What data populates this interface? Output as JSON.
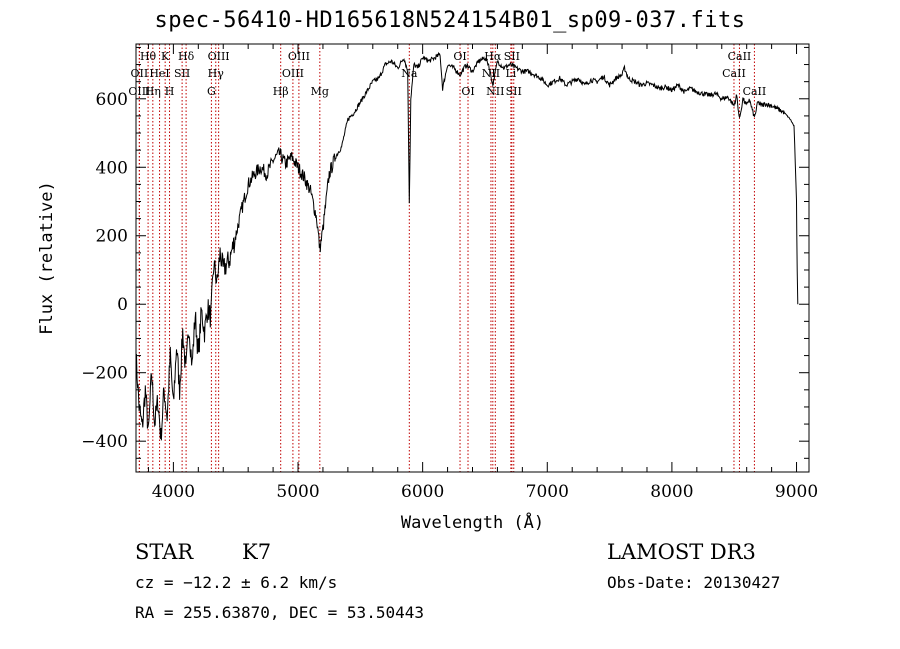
{
  "chart_data": {
    "type": "line",
    "title": "spec-56410-HD165618N524154B01_sp09-037.fits",
    "xlabel": "Wavelength (Å)",
    "ylabel": "Flux (relative)",
    "xlim": [
      3700,
      9100
    ],
    "ylim": [
      -490,
      760
    ],
    "xticks": [
      4000,
      5000,
      6000,
      7000,
      8000,
      9000
    ],
    "yticks": [
      -400,
      -200,
      0,
      200,
      400,
      600
    ],
    "grid": false,
    "series": [
      {
        "x": [
          3700,
          3725,
          3750,
          3775,
          3800,
          3825,
          3850,
          3875,
          3900,
          3925,
          3950,
          3975,
          4000,
          4025,
          4050,
          4075,
          4100,
          4125,
          4150,
          4175,
          4200,
          4225,
          4250,
          4275,
          4300,
          4325,
          4350,
          4375,
          4400,
          4450,
          4500,
          4550,
          4600,
          4650,
          4700,
          4750,
          4800,
          4850,
          4900,
          4950,
          5000,
          5050,
          5100,
          5150,
          5175,
          5200,
          5250,
          5300,
          5350,
          5400,
          5450,
          5500,
          5550,
          5600,
          5650,
          5700,
          5750,
          5800,
          5850,
          5880,
          5893,
          5905,
          5930,
          5960,
          6000,
          6050,
          6100,
          6140,
          6160,
          6200,
          6250,
          6300,
          6350,
          6400,
          6450,
          6500,
          6530,
          6563,
          6600,
          6650,
          6700,
          6750,
          6800,
          6850,
          6900,
          6950,
          7000,
          7050,
          7100,
          7150,
          7200,
          7250,
          7300,
          7350,
          7400,
          7450,
          7500,
          7550,
          7600,
          7620,
          7650,
          7700,
          7750,
          7800,
          7850,
          7900,
          7950,
          8000,
          8050,
          8100,
          8150,
          8200,
          8250,
          8300,
          8350,
          8400,
          8450,
          8498,
          8520,
          8542,
          8570,
          8600,
          8620,
          8662,
          8690,
          8720,
          8750,
          8800,
          8850,
          8900,
          8950,
          8980,
          9000,
          9005,
          9010
        ],
        "y": [
          -150,
          -300,
          -360,
          -250,
          -380,
          -200,
          -350,
          -280,
          -390,
          -250,
          -330,
          -150,
          -300,
          -120,
          -250,
          -80,
          -200,
          -60,
          -180,
          -30,
          -150,
          -20,
          -80,
          -10,
          -40,
          120,
          60,
          150,
          100,
          130,
          200,
          280,
          350,
          380,
          400,
          380,
          420,
          440,
          410,
          430,
          400,
          370,
          330,
          250,
          160,
          220,
          380,
          430,
          460,
          540,
          560,
          590,
          620,
          650,
          660,
          700,
          710,
          690,
          720,
          680,
          300,
          600,
          700,
          690,
          720,
          710,
          720,
          730,
          630,
          700,
          690,
          670,
          700,
          680,
          710,
          720,
          700,
          640,
          710,
          690,
          700,
          690,
          680,
          680,
          670,
          660,
          640,
          650,
          660,
          640,
          650,
          660,
          640,
          655,
          650,
          665,
          640,
          660,
          670,
          690,
          660,
          650,
          640,
          645,
          640,
          630,
          635,
          625,
          640,
          620,
          630,
          620,
          615,
          610,
          615,
          600,
          605,
          580,
          610,
          540,
          600,
          580,
          600,
          545,
          590,
          580,
          585,
          580,
          570,
          560,
          540,
          520,
          300,
          100,
          0
        ]
      }
    ],
    "line_markers": [
      {
        "label": "Hθ",
        "x": 3797,
        "row": 1
      },
      {
        "label": "OII",
        "x": 3727,
        "row": 2
      },
      {
        "label": "OIII",
        "x": 3727,
        "row": 3
      },
      {
        "label": "K",
        "x": 3934,
        "row": 1
      },
      {
        "label": "HeI",
        "x": 3889,
        "row": 2
      },
      {
        "label": "Hη",
        "x": 3835,
        "row": 3
      },
      {
        "label": "SII",
        "x": 4070,
        "row": 2
      },
      {
        "label": "H",
        "x": 3969,
        "row": 3
      },
      {
        "label": "Hδ",
        "x": 4102,
        "row": 1
      },
      {
        "label": "OIII",
        "x": 4363,
        "row": 1
      },
      {
        "label": "Hγ",
        "x": 4340,
        "row": 2
      },
      {
        "label": "G",
        "x": 4305,
        "row": 3
      },
      {
        "label": "OIII",
        "x": 5007,
        "row": 1
      },
      {
        "label": "OIII",
        "x": 4959,
        "row": 2
      },
      {
        "label": "Hβ",
        "x": 4861,
        "row": 3
      },
      {
        "label": "Mg",
        "x": 5175,
        "row": 3
      },
      {
        "label": "Na",
        "x": 5893,
        "row": 2
      },
      {
        "label": "OI",
        "x": 6300,
        "row": 1
      },
      {
        "label": "OI",
        "x": 6364,
        "row": 3
      },
      {
        "label": "Hα",
        "x": 6563,
        "row": 1
      },
      {
        "label": "NII",
        "x": 6548,
        "row": 2
      },
      {
        "label": "NII",
        "x": 6583,
        "row": 3
      },
      {
        "label": "SII",
        "x": 6716,
        "row": 1
      },
      {
        "label": "Li",
        "x": 6708,
        "row": 2
      },
      {
        "label": "SII",
        "x": 6731,
        "row": 3
      },
      {
        "label": "CaII",
        "x": 8542,
        "row": 1
      },
      {
        "label": "CaII",
        "x": 8498,
        "row": 2
      },
      {
        "label": "CaII",
        "x": 8662,
        "row": 3
      }
    ]
  },
  "info": {
    "obj_class": "STAR",
    "subclass": "K7",
    "cz": "cz = −12.2 ± 6.2 km/s",
    "radec": "RA = 255.63870, DEC =  53.50443",
    "survey": "LAMOST DR3",
    "obs_date": "Obs-Date: 20130427"
  },
  "colors": {
    "line_marker": "#c00000",
    "spectrum": "#000000",
    "axes": "#000000"
  }
}
